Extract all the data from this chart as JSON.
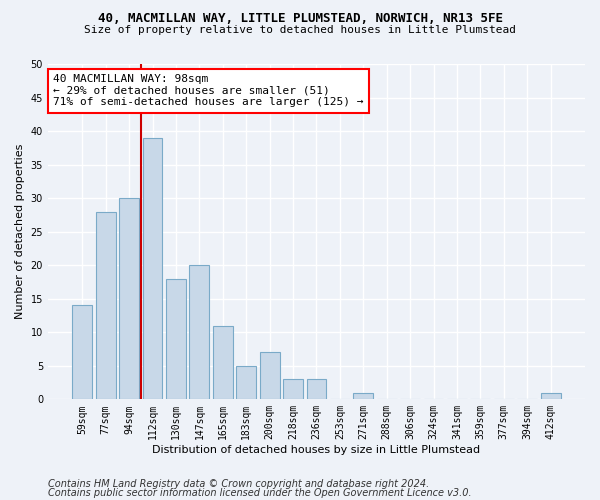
{
  "title_line1": "40, MACMILLAN WAY, LITTLE PLUMSTEAD, NORWICH, NR13 5FE",
  "title_line2": "Size of property relative to detached houses in Little Plumstead",
  "xlabel": "Distribution of detached houses by size in Little Plumstead",
  "ylabel": "Number of detached properties",
  "categories": [
    "59sqm",
    "77sqm",
    "94sqm",
    "112sqm",
    "130sqm",
    "147sqm",
    "165sqm",
    "183sqm",
    "200sqm",
    "218sqm",
    "236sqm",
    "253sqm",
    "271sqm",
    "288sqm",
    "306sqm",
    "324sqm",
    "341sqm",
    "359sqm",
    "377sqm",
    "394sqm",
    "412sqm"
  ],
  "values": [
    14,
    28,
    30,
    39,
    18,
    20,
    11,
    5,
    7,
    3,
    3,
    0,
    1,
    0,
    0,
    0,
    0,
    0,
    0,
    0,
    1
  ],
  "bar_color": "#c8d8e8",
  "bar_edge_color": "#7aaac8",
  "annotation_line1": "40 MACMILLAN WAY: 98sqm",
  "annotation_line2": "← 29% of detached houses are smaller (51)",
  "annotation_line3": "71% of semi-detached houses are larger (125) →",
  "vline_x": 2.5,
  "vline_color": "#cc0000",
  "ylim": [
    0,
    50
  ],
  "yticks": [
    0,
    5,
    10,
    15,
    20,
    25,
    30,
    35,
    40,
    45,
    50
  ],
  "background_color": "#eef2f8",
  "grid_color": "#ffffff",
  "footer_line1": "Contains HM Land Registry data © Crown copyright and database right 2024.",
  "footer_line2": "Contains public sector information licensed under the Open Government Licence v3.0.",
  "title_fontsize": 9,
  "subtitle_fontsize": 8,
  "axis_label_fontsize": 8,
  "tick_fontsize": 7,
  "annotation_fontsize": 8,
  "footer_fontsize": 7
}
